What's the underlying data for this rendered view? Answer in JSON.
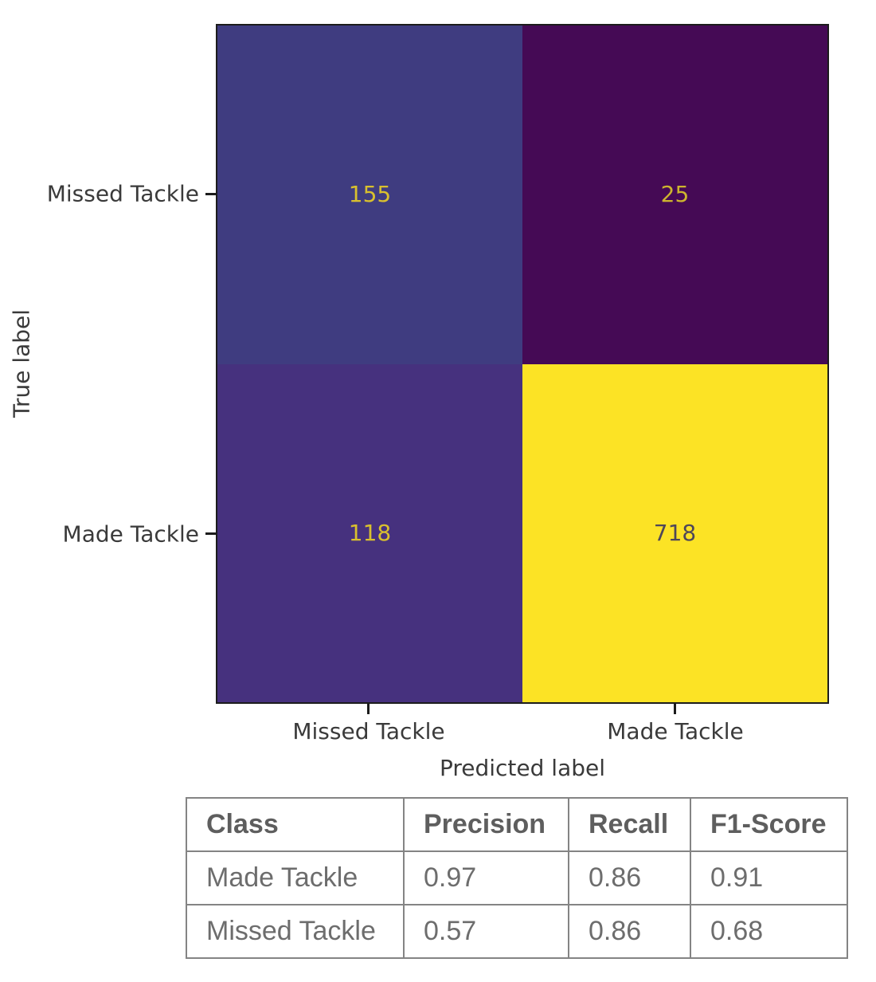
{
  "chart_data": {
    "type": "heatmap",
    "subtype": "confusion-matrix",
    "title": "",
    "xlabel": "Predicted label",
    "ylabel": "True label",
    "x_tick_labels": [
      "Missed Tackle",
      "Made Tackle"
    ],
    "y_tick_labels": [
      "Missed Tackle",
      "Made Tackle"
    ],
    "matrix": [
      [
        155,
        25
      ],
      [
        118,
        718
      ]
    ],
    "colormap": "viridis",
    "value_range": [
      25,
      718
    ],
    "grid": "off",
    "legend": "none",
    "cell_colors": [
      [
        "#3f3c80",
        "#450a55"
      ],
      [
        "#46317e",
        "#fce325"
      ]
    ],
    "annotation_colors": [
      [
        "#d9c02e",
        "#cdb52e"
      ],
      [
        "#d9c02e",
        "#4e4759"
      ]
    ],
    "border_color": "#1c1c1c",
    "axis_text_color": "#3a3a3a"
  },
  "metrics_table": {
    "headers": [
      "Class",
      "Precision",
      "Recall",
      "F1-Score"
    ],
    "rows": [
      [
        "Made Tackle",
        "0.97",
        "0.86",
        "0.91"
      ],
      [
        "Missed Tackle",
        "0.57",
        "0.86",
        "0.68"
      ]
    ],
    "border_color": "#848484",
    "header_text_color": "#5e5e5e",
    "cell_text_color": "#6d6d6d"
  }
}
